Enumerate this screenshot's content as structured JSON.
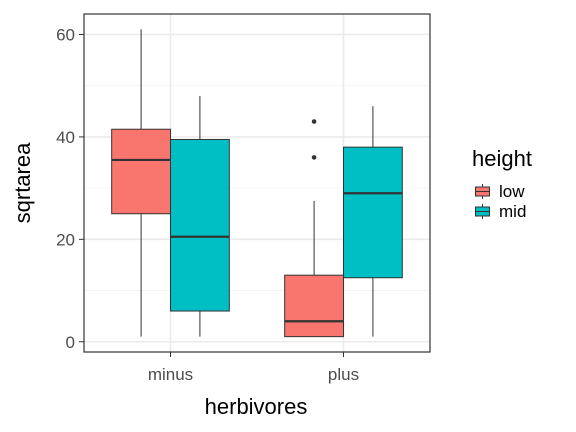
{
  "chart_data": {
    "type": "boxplot",
    "xlabel": "herbivores",
    "ylabel": "sqrtarea",
    "categories": [
      "minus",
      "plus"
    ],
    "ylim": [
      -2,
      64
    ],
    "yticks": [
      0,
      20,
      40,
      60
    ],
    "grid": true,
    "legend": {
      "title": "height",
      "placement": "right",
      "entries": [
        {
          "label": "low",
          "color": "#F8766D"
        },
        {
          "label": "mid",
          "color": "#00BFC4"
        }
      ]
    },
    "series": [
      {
        "name": "low",
        "color": "#F8766D",
        "boxes": [
          {
            "category": "minus",
            "min": 1,
            "q1": 25,
            "median": 35.5,
            "q3": 41.5,
            "max": 61,
            "outliers": []
          },
          {
            "category": "plus",
            "min": 1,
            "q1": 1,
            "median": 4,
            "q3": 13,
            "max": 27.5,
            "outliers": [
              36,
              43
            ]
          }
        ]
      },
      {
        "name": "mid",
        "color": "#00BFC4",
        "boxes": [
          {
            "category": "minus",
            "min": 1,
            "q1": 6,
            "median": 20.5,
            "q3": 39.5,
            "max": 48,
            "outliers": []
          },
          {
            "category": "plus",
            "min": 1,
            "q1": 12.5,
            "median": 29,
            "q3": 38,
            "max": 46,
            "outliers": []
          }
        ]
      }
    ]
  }
}
